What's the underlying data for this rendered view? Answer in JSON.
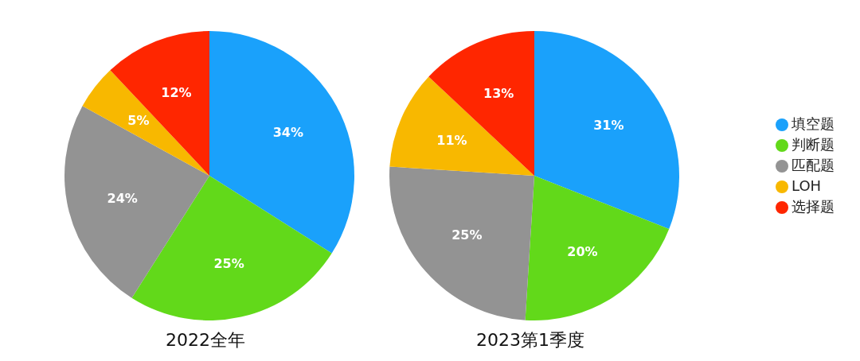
{
  "chart_data": [
    {
      "type": "pie",
      "title": "2022全年",
      "categories": [
        null,
        null,
        null,
        null,
        null
      ],
      "values": [
        34,
        25,
        24,
        5,
        12
      ],
      "value_labels": [
        "34%",
        "25%",
        "24%",
        "5%",
        "12%"
      ],
      "colors": [
        "#1aa1fb",
        "#62d91a",
        "#939393",
        "#f8b800",
        "#ff2600"
      ],
      "legend": false
    },
    {
      "type": "pie",
      "title": "2023第1季度",
      "categories": [
        "填空题",
        "判断题",
        "匹配题",
        "LOH",
        "选择题"
      ],
      "values": [
        31,
        20,
        25,
        11,
        13
      ],
      "value_labels": [
        "31%",
        "20%",
        "25%",
        "11%",
        "13%"
      ],
      "colors": [
        "#1aa1fb",
        "#62d91a",
        "#939393",
        "#f8b800",
        "#ff2600"
      ],
      "legend": "right"
    }
  ]
}
